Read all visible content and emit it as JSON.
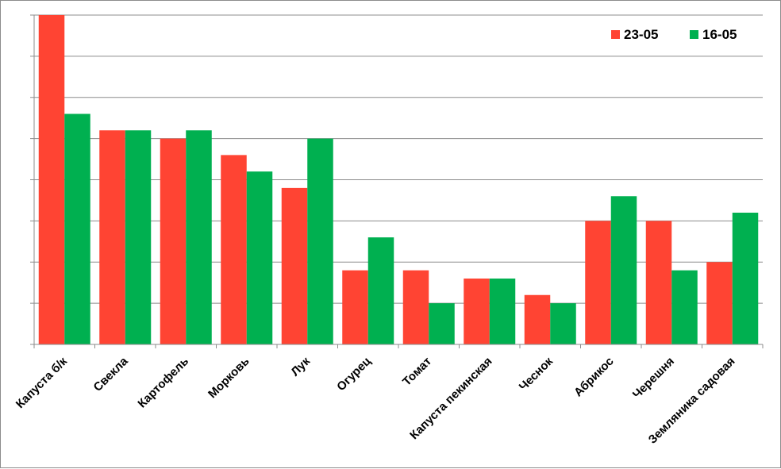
{
  "chart_data": {
    "type": "bar",
    "categories": [
      "Капуста б/к",
      "Свекла",
      "Картофель",
      "Морковь",
      "Лук",
      "Огурец",
      "Томат",
      "Капуста пекинская",
      "Чеснок",
      "Абрикос",
      "Черешня",
      "Земляника садовая"
    ],
    "series": [
      {
        "name": "23-05",
        "color": "#ff4433",
        "values": [
          8.0,
          5.2,
          5.0,
          4.6,
          3.8,
          1.8,
          1.8,
          1.6,
          1.2,
          3.0,
          3.0,
          2.0
        ]
      },
      {
        "name": "16-05",
        "color": "#00b050",
        "values": [
          5.6,
          5.2,
          5.2,
          4.2,
          5.0,
          2.6,
          1.0,
          1.6,
          1.0,
          3.6,
          1.8,
          3.2
        ]
      }
    ],
    "ylim": [
      0,
      8
    ],
    "y_tick_labels_shown": false,
    "grid": true,
    "legend_position": "top-right"
  }
}
